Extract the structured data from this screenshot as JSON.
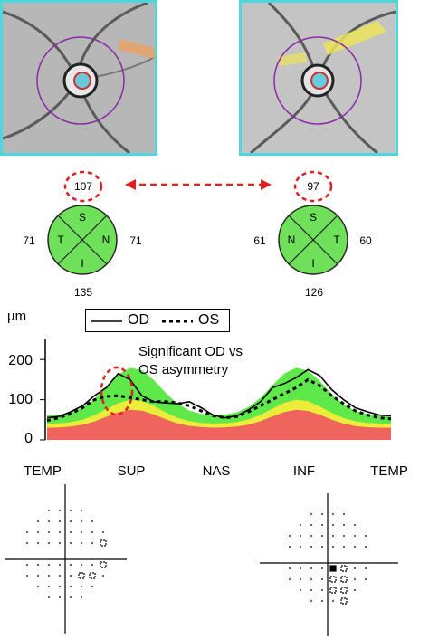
{
  "od": {
    "average": "107",
    "quadrants": {
      "S": "S",
      "T": "T",
      "N": "N",
      "I": "I"
    },
    "temporal": "71",
    "nasal": "71",
    "inferior": "135"
  },
  "os": {
    "average": "97",
    "quadrants": {
      "S": "S",
      "T": "T",
      "N": "N",
      "I": "I"
    },
    "nasal": "61",
    "temporal": "60",
    "inferior": "126"
  },
  "colors": {
    "cyan_border": "#4fd6dc",
    "green_sector": "#6fe05a",
    "normal_green": "#5ee84a",
    "borderline_yellow": "#ecec3a",
    "abnormal_red": "#f0645e",
    "highlight_red": "#e02020"
  },
  "chart_data": {
    "type": "line",
    "ylabel": "µm",
    "yticks": [
      "200",
      "100",
      "0"
    ],
    "ylim": [
      0,
      250
    ],
    "x_labels": [
      "TEMP",
      "SUP",
      "NAS",
      "INF",
      "TEMP"
    ],
    "annotation": [
      "Significant OD vs",
      "OS asymmetry"
    ],
    "series": [
      {
        "name": "OD",
        "style": "solid",
        "values": [
          55,
          58,
          70,
          85,
          110,
          130,
          165,
          150,
          110,
          95,
          92,
          90,
          95,
          80,
          62,
          55,
          60,
          75,
          95,
          130,
          140,
          155,
          175,
          160,
          125,
          100,
          80,
          70,
          62,
          60
        ]
      },
      {
        "name": "OS",
        "style": "dotted",
        "values": [
          48,
          55,
          65,
          80,
          100,
          108,
          110,
          105,
          100,
          95,
          95,
          92,
          85,
          72,
          60,
          55,
          58,
          70,
          85,
          100,
          115,
          130,
          150,
          135,
          110,
          90,
          72,
          62,
          55,
          52
        ]
      }
    ]
  }
}
